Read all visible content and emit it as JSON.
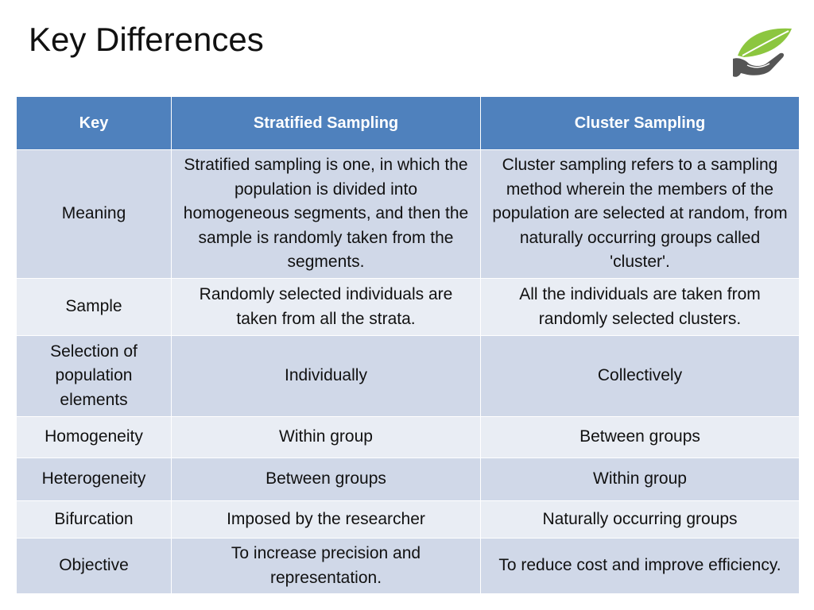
{
  "slide": {
    "title": "Key Differences",
    "logo_icon": "leaf-in-hand-icon"
  },
  "table": {
    "headers": [
      "Key",
      "Stratified Sampling",
      "Cluster Sampling"
    ],
    "rows": [
      [
        "Meaning",
        "Stratified sampling is one, in which the population is divided into homogeneous segments, and then the sample is randomly taken from the segments.",
        "Cluster sampling refers to a sampling method wherein the members of the population are selected at random, from naturally occurring groups called 'cluster'."
      ],
      [
        "Sample",
        "Randomly selected individuals are taken from all the strata.",
        "All the individuals are taken from randomly selected clusters."
      ],
      [
        "Selection of population elements",
        "Individually",
        "Collectively"
      ],
      [
        "Homogeneity",
        "Within group",
        "Between groups"
      ],
      [
        "Heterogeneity",
        "Between groups",
        "Within group"
      ],
      [
        "Bifurcation",
        "Imposed by the researcher",
        "Naturally occurring groups"
      ],
      [
        "Objective",
        "To increase precision and representation.",
        "To reduce cost and improve efficiency."
      ]
    ]
  },
  "colors": {
    "header": "#4f81bd",
    "row_dark": "#d0d8e8",
    "row_light": "#e9edf4",
    "leaf_green": "#8cc63f",
    "hand_gray": "#555555"
  }
}
